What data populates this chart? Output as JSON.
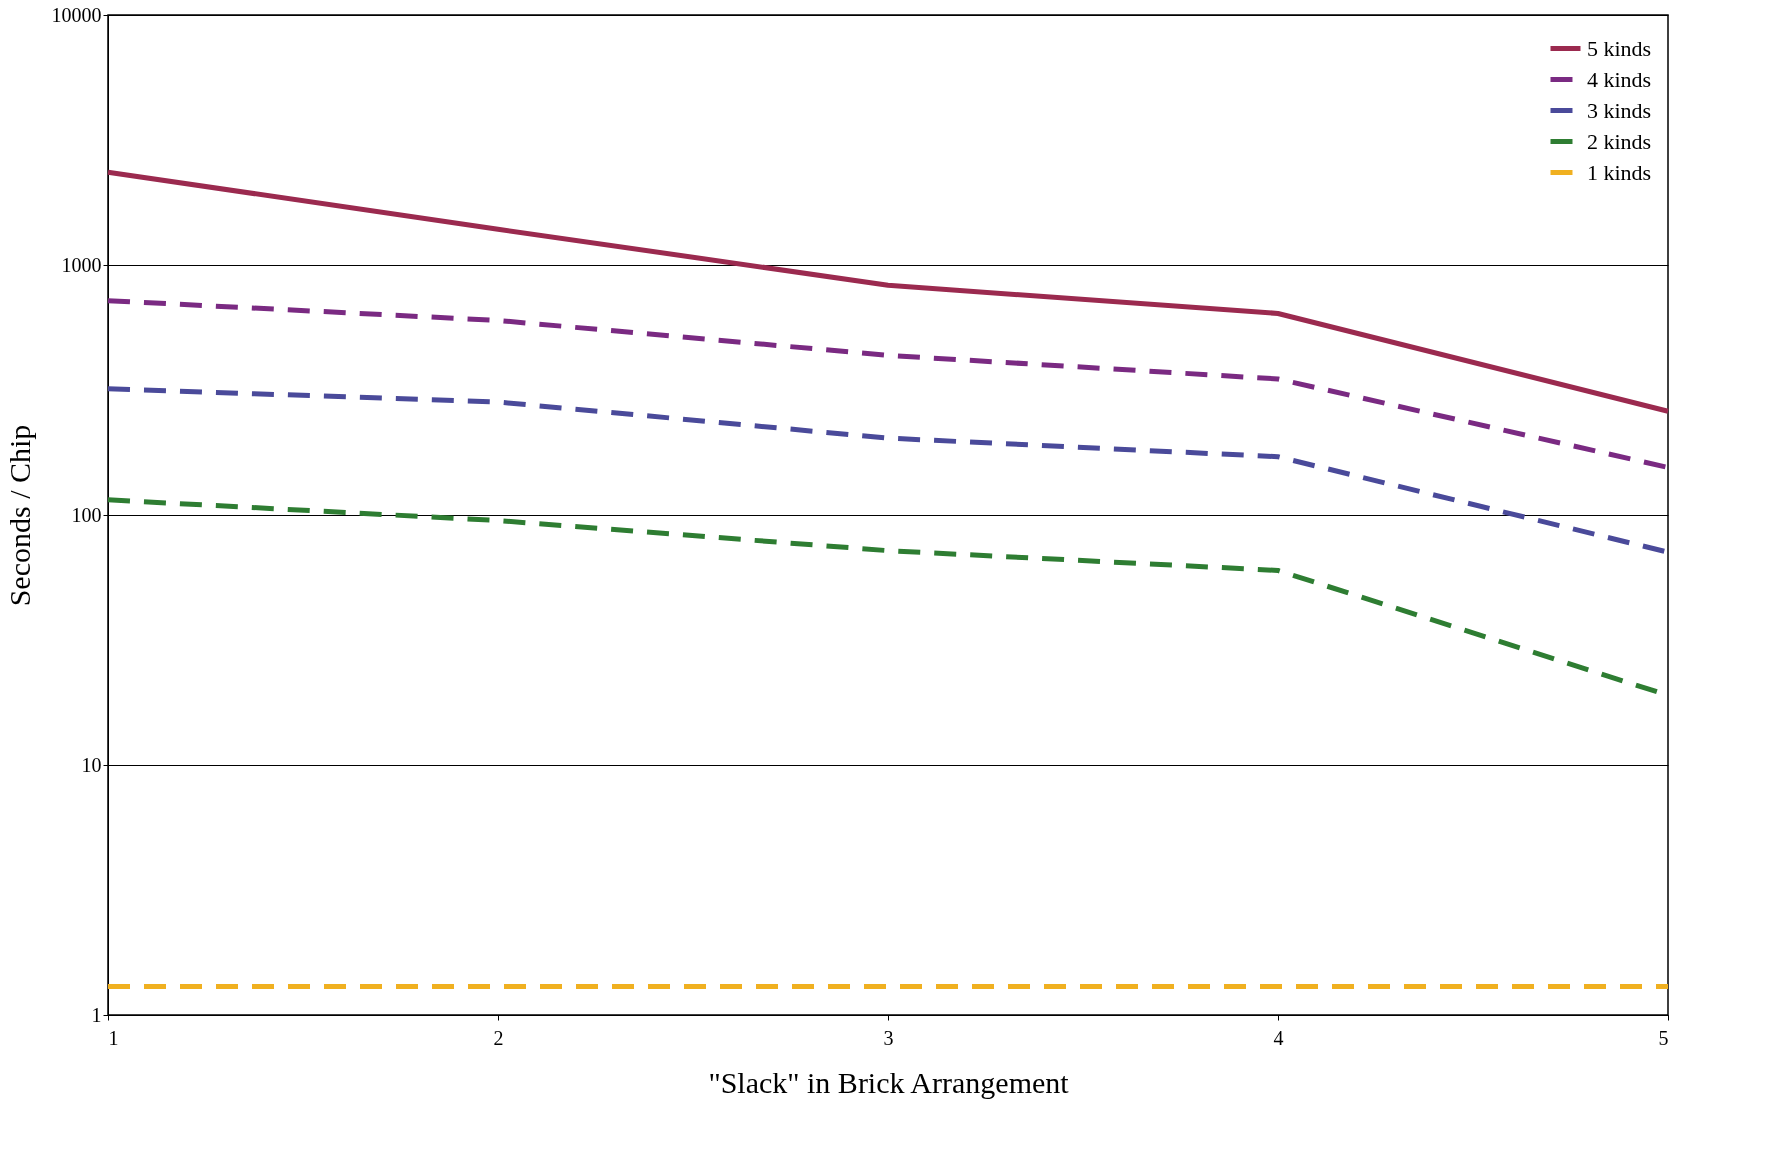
{
  "chart_data": {
    "type": "line",
    "xlabel": "\"Slack\" in Brick Arrangement",
    "ylabel": "Seconds / Chip",
    "x": [
      1,
      2,
      3,
      4,
      5
    ],
    "series": [
      {
        "name": "5 kinds",
        "color": "#9b2a4f",
        "line_style": "solid",
        "values": [
          2350,
          1390,
          830,
          640,
          260
        ]
      },
      {
        "name": "4 kinds",
        "color": "#7a2a82",
        "line_style": "dashed",
        "values": [
          720,
          600,
          435,
          350,
          155
        ]
      },
      {
        "name": "3 kinds",
        "color": "#4a4a9a",
        "line_style": "dashed",
        "values": [
          320,
          283,
          203,
          171,
          71
        ]
      },
      {
        "name": "2 kinds",
        "color": "#2e7d32",
        "line_style": "dashed",
        "values": [
          115,
          95,
          72,
          60,
          19
        ]
      },
      {
        "name": "1 kinds",
        "color": "#f0b020",
        "line_style": "dashed",
        "values": [
          1.3,
          1.3,
          1.3,
          1.3,
          1.3
        ]
      }
    ],
    "xlim": [
      1,
      5
    ],
    "xticks": [
      1,
      2,
      3,
      4,
      5
    ],
    "ylim": [
      1,
      10000
    ],
    "yticks": [
      1,
      10,
      100,
      1000,
      10000
    ],
    "log": "y",
    "grid": "y",
    "legend": "top right",
    "marker": "none"
  }
}
